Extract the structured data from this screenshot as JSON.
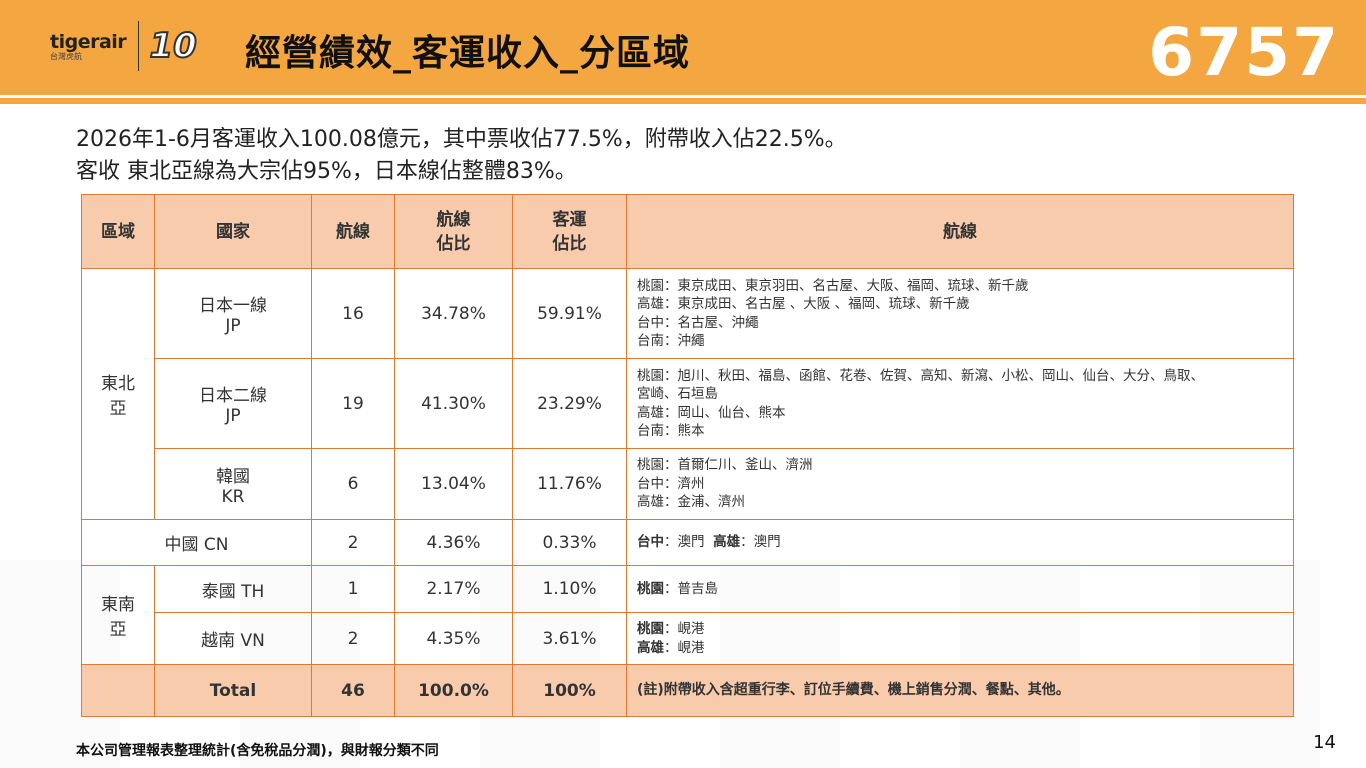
{
  "header": {
    "logo_text": "tigerair",
    "logo_sub": "台灣虎航",
    "logo_10": "10",
    "title": "經營績效_客運收入_分區域",
    "stock_code": "6757"
  },
  "summary": {
    "line1": "2026年1-6月客運收入100.08億元，其中票收佔77.5%，附帶收入佔22.5%。",
    "line2": "客收 東北亞線為大宗佔95%，日本線佔整體83%。"
  },
  "table": {
    "headers": {
      "region": "區域",
      "country": "國家",
      "routes_count": "航線",
      "route_share_1": "航線",
      "route_share_2": "佔比",
      "pax_share_1": "客運",
      "pax_share_2": "佔比",
      "routes": "航線"
    },
    "regions": {
      "northeast_1": "東北",
      "northeast_2": "亞",
      "southeast_1": "東南",
      "southeast_2": "亞"
    },
    "rows": [
      {
        "country_1": "日本一線",
        "country_2": "JP",
        "count": "16",
        "route_share": "34.78%",
        "pax_share": "59.91%",
        "routes": [
          "桃園：東京成田、東京羽田、名古屋、大阪、福岡、琉球、新千歲",
          "高雄：東京成田、名古屋 、大阪 、福岡、琉球、新千歲",
          "台中：名古屋、沖繩",
          "台南：沖繩"
        ]
      },
      {
        "country_1": "日本二線",
        "country_2": "JP",
        "count": "19",
        "route_share": "41.30%",
        "pax_share": "23.29%",
        "routes": [
          "桃園：旭川、秋田、福島、函館、花卷、佐賀、高知、新瀉、小松、岡山、仙台、大分、鳥取、",
          "宮崎、石垣島",
          "高雄：岡山、仙台、熊本",
          "台南：熊本"
        ]
      },
      {
        "country_1": "韓國",
        "country_2": "KR",
        "count": "6",
        "route_share": "13.04%",
        "pax_share": "11.76%",
        "routes": [
          "桃園：首爾仁川、釜山、濟洲",
          "台中：濟州",
          "高雄：金浦、濟州"
        ]
      },
      {
        "country": "中國 CN",
        "count": "2",
        "route_share": "4.36%",
        "pax_share": "0.33%",
        "routes_a_label": "台中",
        "routes_a_value": "：澳門",
        "routes_b_label": "高雄",
        "routes_b_value": "：澳門"
      },
      {
        "country": "泰國 TH",
        "count": "1",
        "route_share": "2.17%",
        "pax_share": "1.10%",
        "routes_a_label": "桃園",
        "routes_a_value": "：普吉島"
      },
      {
        "country": "越南 VN",
        "count": "2",
        "route_share": "4.35%",
        "pax_share": "3.61%",
        "routes_a_label": "桃園",
        "routes_a_value": "：峴港",
        "routes_b_label": "高雄",
        "routes_b_value": "：峴港"
      }
    ],
    "total": {
      "label": "Total",
      "count": "46",
      "route_share": "100.0%",
      "pax_share": "100%",
      "note": "(註)附帶收入含超重行李、訂位手續費、機上銷售分潤、餐點、其他。"
    }
  },
  "footer": {
    "note": "本公司管理報表整理統計(含免稅品分潤)，與財報分類不同",
    "page": "14"
  },
  "colors": {
    "header_orange": "#f4a640",
    "table_header_fill": "#f8cbad",
    "table_border": "#e07a32"
  }
}
